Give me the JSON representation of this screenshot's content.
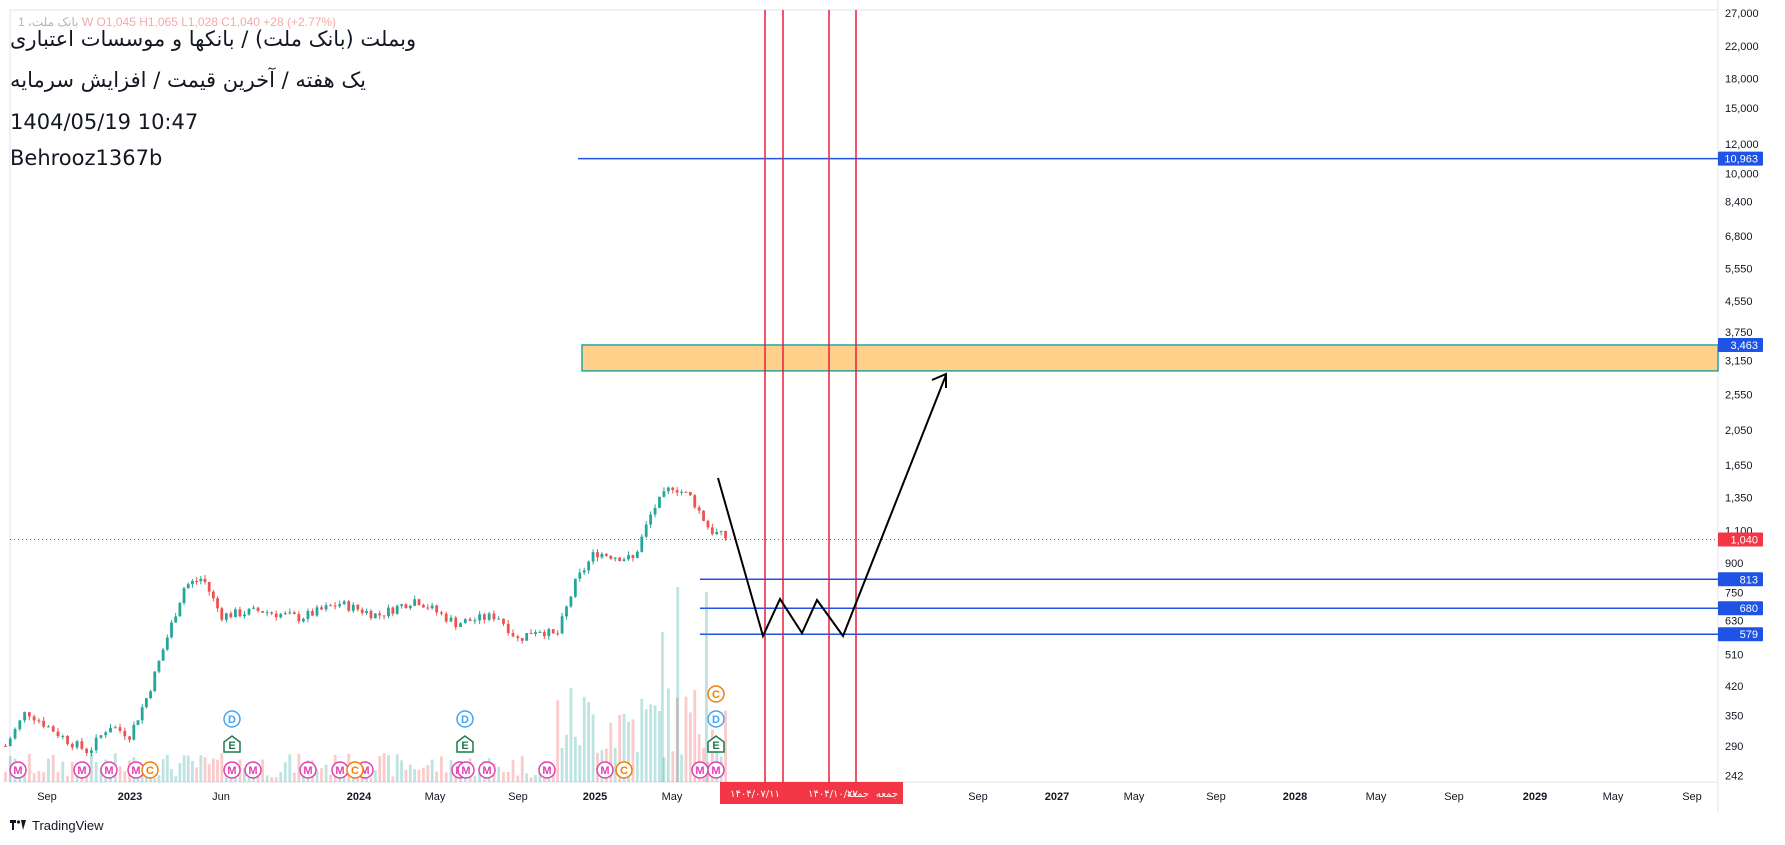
{
  "header": {
    "ohlc_symbol": "بانک ملت، 1",
    "ohlc_values": "W  O1,045  H1,065  L1,028  C1,040  +28 (+2.77%)",
    "title": "وبملت (بانک ملت) / بانکها و موسسات اعتباری",
    "subtitle": "یک هفته / آخرین قیمت / افزایش سرمایه",
    "timestamp": "1404/05/19 10:47",
    "author": "Behrooz1367b"
  },
  "footer": {
    "brand": "TradingView",
    "logo_icon": "tradingview-logo-icon"
  },
  "colors": {
    "up": "#26a69a",
    "down": "#ef5350",
    "hline": "#1e53e5",
    "vline": "#e91e3f",
    "zone_fill": "#ffd08a",
    "zone_border": "#26a69a",
    "last_price": "#f23645",
    "projection": "#000000"
  },
  "chart_data": {
    "type": "candlestick",
    "scale": "log",
    "timeframe": "1W",
    "last_price": 1040,
    "y_ticks": [
      27000,
      22000,
      18000,
      15000,
      12000,
      10000,
      8400,
      6800,
      5550,
      4550,
      3750,
      3150,
      2550,
      2050,
      1650,
      1350,
      1100,
      900,
      750,
      630,
      510,
      420,
      350,
      290,
      242
    ],
    "y_tick_labels": [
      "27,000",
      "22,000",
      "18,000",
      "15,000",
      "12,000",
      "10,000",
      "8,400",
      "6,800",
      "5,550",
      "4,550",
      "3,750",
      "3,150",
      "2,550",
      "2,050",
      "1,650",
      "1,350",
      "1,100",
      "900",
      "750",
      "630",
      "510",
      "420",
      "350",
      "290",
      "242"
    ],
    "x_tick_labels": [
      {
        "label": "Sep",
        "x": "2022-09",
        "year": false
      },
      {
        "label": "2023",
        "x": "2023-01",
        "year": true
      },
      {
        "label": "Jun",
        "x": "2023-06",
        "year": false
      },
      {
        "label": "2024",
        "x": "2024-01",
        "year": true
      },
      {
        "label": "May",
        "x": "2024-05",
        "year": false
      },
      {
        "label": "Sep",
        "x": "2024-09",
        "year": false
      },
      {
        "label": "2025",
        "x": "2025-01",
        "year": true
      },
      {
        "label": "May",
        "x": "2025-05",
        "year": false
      },
      {
        "label": "Sep",
        "x": "2026-09",
        "year": false
      },
      {
        "label": "2027",
        "x": "2027-01",
        "year": true
      },
      {
        "label": "May",
        "x": "2027-05",
        "year": false
      },
      {
        "label": "Sep",
        "x": "2027-09",
        "year": false
      },
      {
        "label": "2028",
        "x": "2028-01",
        "year": true
      },
      {
        "label": "May",
        "x": "2028-05",
        "year": false
      },
      {
        "label": "Sep",
        "x": "2028-09",
        "year": false
      },
      {
        "label": "2029",
        "x": "2029-01",
        "year": true
      },
      {
        "label": "May",
        "x": "2029-05",
        "year": false
      },
      {
        "label": "Sep",
        "x": "2029-09",
        "year": false
      }
    ],
    "price_waypoints": [
      {
        "x": "2022-07",
        "y": 290
      },
      {
        "x": "2022-08",
        "y": 360
      },
      {
        "x": "2022-10",
        "y": 300
      },
      {
        "x": "2022-11",
        "y": 280
      },
      {
        "x": "2022-12",
        "y": 330
      },
      {
        "x": "2023-01",
        "y": 310
      },
      {
        "x": "2023-02",
        "y": 400
      },
      {
        "x": "2023-03",
        "y": 560
      },
      {
        "x": "2023-04",
        "y": 780
      },
      {
        "x": "2023-05",
        "y": 820
      },
      {
        "x": "2023-06",
        "y": 650
      },
      {
        "x": "2023-08",
        "y": 670
      },
      {
        "x": "2023-10",
        "y": 640
      },
      {
        "x": "2023-12",
        "y": 700
      },
      {
        "x": "2024-02",
        "y": 650
      },
      {
        "x": "2024-04",
        "y": 720
      },
      {
        "x": "2024-06",
        "y": 620
      },
      {
        "x": "2024-08",
        "y": 650
      },
      {
        "x": "2024-09",
        "y": 560
      },
      {
        "x": "2024-10",
        "y": 600
      },
      {
        "x": "2024-11",
        "y": 570
      },
      {
        "x": "2024-12",
        "y": 800
      },
      {
        "x": "2025-01",
        "y": 960
      },
      {
        "x": "2025-03",
        "y": 920
      },
      {
        "x": "2025-04",
        "y": 1250
      },
      {
        "x": "2025-05",
        "y": 1450
      },
      {
        "x": "2025-06",
        "y": 1350
      },
      {
        "x": "2025-07",
        "y": 1100
      },
      {
        "x": "2025-08",
        "y": 1040
      }
    ],
    "horizontal_lines": [
      10963,
      813,
      680,
      579
    ],
    "horizontal_line_labels": [
      "10,963",
      "813",
      "680",
      "579"
    ],
    "zone": {
      "top": 3463,
      "bottom": 2950,
      "label": "3,463"
    },
    "last_price_label": "1,040",
    "vertical_line_count": 4,
    "date_tags": [
      "۱۴۰۴/۰۷/۱۱",
      "۱۴۰۴/۱۰/۲۷",
      "جمعه",
      "جمعه"
    ],
    "projection_path": [
      {
        "x": "2025-07",
        "y": 1500
      },
      {
        "x": "2025-10",
        "y": 579
      },
      {
        "x": "2025-11",
        "y": 720
      },
      {
        "x": "2025-12",
        "y": 579
      },
      {
        "x": "2026-01",
        "y": 720
      },
      {
        "x": "2026-02",
        "y": 579
      },
      {
        "x": "2026-06",
        "y": 2900
      }
    ],
    "event_markers": [
      "M",
      "C",
      "D",
      "E"
    ]
  }
}
